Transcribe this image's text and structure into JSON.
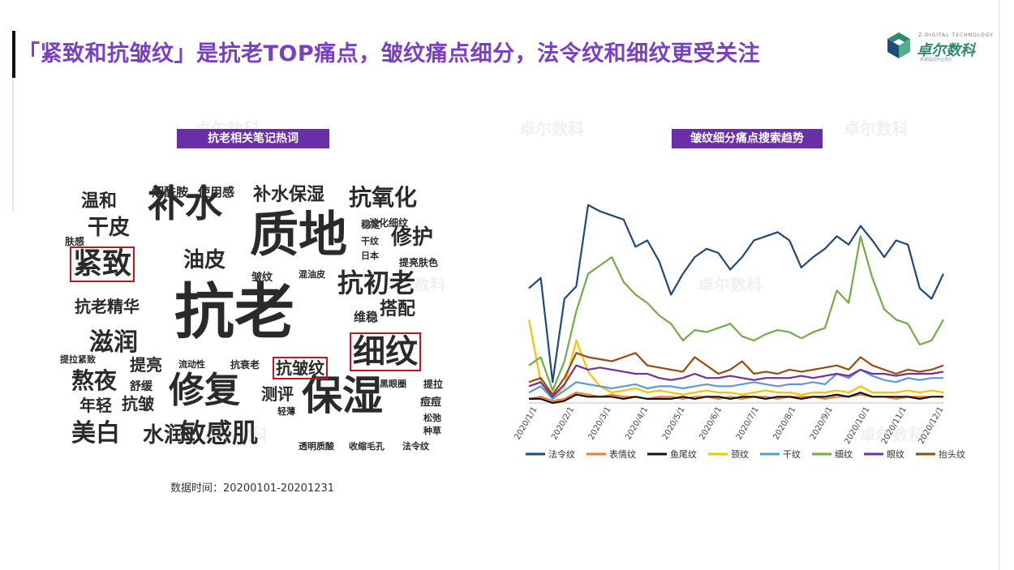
{
  "title": "「紧致和抗皱纹」是抗老TOP痛点，皱纹痛点细分，法令纹和细纹更受关注",
  "logo": {
    "tagline": "Z-DIGITAL TECHNOLOGY",
    "name": "卓尔数科",
    "sub": "数据驱动商业增长",
    "colors": {
      "green": "#2c8a6f",
      "navy": "#1e4c7a"
    }
  },
  "watermark_text": "卓尔数科",
  "wordcloud": {
    "label": "抗老相关笔记热词",
    "highlight_color": "#c0171e",
    "words": [
      {
        "text": "抗老",
        "size": 74,
        "highlighted": false
      },
      {
        "text": "质地",
        "size": 60,
        "highlighted": false
      },
      {
        "text": "保湿",
        "size": 50,
        "highlighted": false
      },
      {
        "text": "补水",
        "size": 46,
        "highlighted": false
      },
      {
        "text": "修复",
        "size": 44,
        "highlighted": false
      },
      {
        "text": "细纹",
        "size": 40,
        "highlighted": true
      },
      {
        "text": "紧致",
        "size": 36,
        "highlighted": true
      },
      {
        "text": "抗初老",
        "size": 32,
        "highlighted": false
      },
      {
        "text": "敏感肌",
        "size": 32,
        "highlighted": false
      },
      {
        "text": "抗氧化",
        "size": 28,
        "highlighted": false
      },
      {
        "text": "滋润",
        "size": 30,
        "highlighted": false
      },
      {
        "text": "美白",
        "size": 30,
        "highlighted": false
      },
      {
        "text": "熬夜",
        "size": 28,
        "highlighted": false
      },
      {
        "text": "修护",
        "size": 26,
        "highlighted": false
      },
      {
        "text": "干皮",
        "size": 26,
        "highlighted": false
      },
      {
        "text": "油皮",
        "size": 26,
        "highlighted": false
      },
      {
        "text": "水润",
        "size": 26,
        "highlighted": false
      },
      {
        "text": "补水保湿",
        "size": 22,
        "highlighted": false
      },
      {
        "text": "温和",
        "size": 22,
        "highlighted": false
      },
      {
        "text": "抗老精华",
        "size": 20,
        "highlighted": false
      },
      {
        "text": "抗皱纹",
        "size": 20,
        "highlighted": true
      },
      {
        "text": "搭配",
        "size": 22,
        "highlighted": false
      },
      {
        "text": "测评",
        "size": 20,
        "highlighted": false
      },
      {
        "text": "提亮",
        "size": 20,
        "highlighted": false
      },
      {
        "text": "年轻",
        "size": 20,
        "highlighted": false
      },
      {
        "text": "抗皱",
        "size": 20,
        "highlighted": false
      },
      {
        "text": "烟酰胺",
        "size": 15,
        "highlighted": false
      },
      {
        "text": "使用感",
        "size": 15,
        "highlighted": false
      },
      {
        "text": "维稳",
        "size": 15,
        "highlighted": false
      },
      {
        "text": "舒缓",
        "size": 14,
        "highlighted": false
      },
      {
        "text": "稳定",
        "size": 12,
        "highlighted": false
      },
      {
        "text": "淡化细纹",
        "size": 12,
        "highlighted": false
      },
      {
        "text": "干纹",
        "size": 11,
        "highlighted": false
      },
      {
        "text": "日本",
        "size": 11,
        "highlighted": false
      },
      {
        "text": "提亮肤色",
        "size": 12,
        "highlighted": false
      },
      {
        "text": "肤感",
        "size": 12,
        "highlighted": false
      },
      {
        "text": "皱纹",
        "size": 13,
        "highlighted": false
      },
      {
        "text": "混油皮",
        "size": 11,
        "highlighted": false
      },
      {
        "text": "提拉紧致",
        "size": 11,
        "highlighted": false
      },
      {
        "text": "流动性",
        "size": 11,
        "highlighted": false
      },
      {
        "text": "抗衰老",
        "size": 12,
        "highlighted": false
      },
      {
        "text": "黑眼圈",
        "size": 11,
        "highlighted": false
      },
      {
        "text": "提拉",
        "size": 12,
        "highlighted": false
      },
      {
        "text": "痘痘",
        "size": 13,
        "highlighted": false
      },
      {
        "text": "轻薄",
        "size": 11,
        "highlighted": false
      },
      {
        "text": "松弛",
        "size": 11,
        "highlighted": false
      },
      {
        "text": "种草",
        "size": 11,
        "highlighted": false
      },
      {
        "text": "透明质酸",
        "size": 11,
        "highlighted": false
      },
      {
        "text": "收缩毛孔",
        "size": 11,
        "highlighted": false
      },
      {
        "text": "法令纹",
        "size": 11,
        "highlighted": false
      }
    ]
  },
  "footnote": "数据时间：20200101-20201231",
  "chart_data": {
    "type": "line",
    "title": "皱纹细分痛点搜索趋势",
    "x_tick_labels": [
      "2020/1/1",
      "2020/2/1",
      "2020/3/1",
      "2020/4/1",
      "2020/5/1",
      "2020/6/1",
      "2020/7/1",
      "2020/8/1",
      "2020/9/1",
      "2020/10/1",
      "2020/11/1",
      "2020/12/1"
    ],
    "xlabel": "",
    "ylabel": "",
    "y_axis_visible": false,
    "grid": false,
    "legend_position": "bottom",
    "series": [
      {
        "name": "法令纹",
        "color": "#1f497d",
        "values": [
          55,
          60,
          10,
          50,
          56,
          95,
          92,
          90,
          88,
          75,
          78,
          68,
          52,
          62,
          70,
          74,
          72,
          64,
          70,
          78,
          80,
          82,
          78,
          65,
          70,
          74,
          80,
          76,
          85,
          78,
          70,
          78,
          76,
          55,
          50,
          62
        ]
      },
      {
        "name": "表情纹",
        "color": "#ed7d31",
        "values": [
          2,
          3,
          1,
          2,
          5,
          4,
          3,
          4,
          3,
          3,
          2,
          3,
          3,
          2,
          3,
          3,
          2,
          3,
          2,
          3,
          3,
          2,
          3,
          3,
          3,
          2,
          3,
          3,
          4,
          3,
          3,
          2,
          3,
          3,
          3,
          3
        ]
      },
      {
        "name": "鱼尾纹",
        "color": "#111111",
        "values": [
          2,
          2,
          0,
          1,
          4,
          3,
          3,
          3,
          2,
          3,
          2,
          2,
          2,
          3,
          2,
          3,
          3,
          2,
          3,
          3,
          2,
          3,
          3,
          2,
          3,
          3,
          4,
          3,
          5,
          3,
          3,
          3,
          3,
          2,
          3,
          3
        ]
      },
      {
        "name": "颈纹",
        "color": "#ffc000",
        "values": [
          40,
          10,
          2,
          8,
          30,
          15,
          8,
          5,
          6,
          7,
          5,
          6,
          5,
          4,
          5,
          6,
          5,
          5,
          4,
          5,
          6,
          5,
          5,
          4,
          5,
          5,
          6,
          5,
          8,
          5,
          5,
          5,
          6,
          5,
          6,
          5
        ]
      },
      {
        "name": "干纹",
        "color": "#5b9bd5",
        "values": [
          5,
          8,
          2,
          6,
          10,
          9,
          8,
          7,
          8,
          9,
          7,
          8,
          8,
          7,
          8,
          9,
          8,
          8,
          9,
          10,
          9,
          8,
          9,
          9,
          10,
          9,
          14,
          12,
          16,
          13,
          11,
          10,
          12,
          11,
          12,
          12
        ]
      },
      {
        "name": "细纹",
        "color": "#70ad47",
        "values": [
          18,
          22,
          6,
          20,
          44,
          62,
          66,
          70,
          58,
          52,
          48,
          42,
          38,
          30,
          35,
          34,
          36,
          38,
          32,
          30,
          33,
          35,
          34,
          31,
          34,
          36,
          54,
          48,
          80,
          60,
          45,
          40,
          38,
          28,
          30,
          40
        ]
      },
      {
        "name": "眼纹",
        "color": "#7030a0",
        "values": [
          8,
          10,
          3,
          9,
          18,
          16,
          17,
          16,
          15,
          14,
          14,
          12,
          11,
          12,
          14,
          12,
          12,
          13,
          12,
          11,
          12,
          12,
          12,
          13,
          12,
          13,
          14,
          13,
          16,
          14,
          14,
          13,
          14,
          14,
          14,
          15
        ]
      },
      {
        "name": "抬头纹",
        "color": "#9c4a0c",
        "values": [
          10,
          12,
          4,
          12,
          24,
          22,
          21,
          20,
          22,
          24,
          18,
          17,
          16,
          15,
          22,
          18,
          14,
          16,
          20,
          14,
          15,
          14,
          16,
          15,
          16,
          17,
          18,
          16,
          22,
          18,
          16,
          14,
          16,
          15,
          16,
          18
        ]
      }
    ]
  }
}
